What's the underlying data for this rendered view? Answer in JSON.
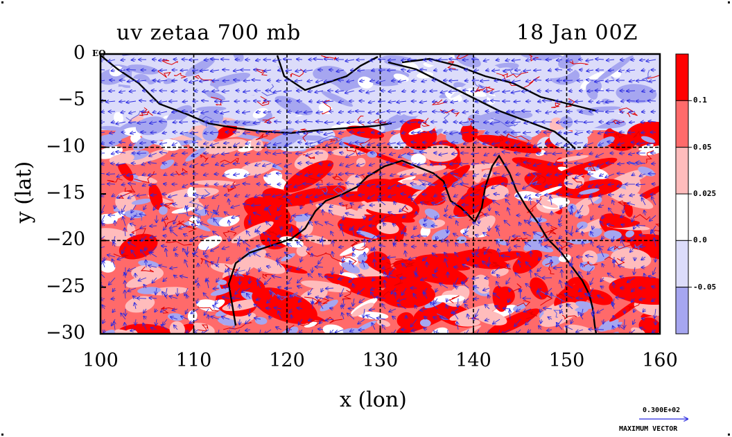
{
  "title_left": "uv zetaa 700 mb",
  "title_right": "18 Jan 00Z",
  "x_axis_label": "x (lon)",
  "y_axis_label": "y (lat)",
  "equator_label": "EQ",
  "x_ticks": [
    "100",
    "110",
    "120",
    "130",
    "140",
    "150",
    "160"
  ],
  "y_ticks": [
    "0",
    "−5",
    "−10",
    "−15",
    "−20",
    "−25",
    "−30"
  ],
  "colorbar": {
    "labels": [
      "0.1",
      "0.05",
      "0.025",
      "0.0",
      "-0.05"
    ],
    "colors": [
      "#ff0000",
      "#ff6a6a",
      "#ffbcbc",
      "#ffffff",
      "#dcdcfa",
      "#a6a6f0"
    ]
  },
  "vector_key": {
    "value": "0.300E+02",
    "caption": "MAXIMUM VECTOR"
  },
  "map": {
    "lon_range": [
      100,
      160
    ],
    "lat_range": [
      -30,
      0
    ],
    "grid": true,
    "coastline_color": "#000000",
    "vector_color": "#2a2ae0",
    "shading_colors": {
      "strong_positive": "#ff0000",
      "positive": "#ff6a6a",
      "weak_positive": "#ffbcbc",
      "near_zero": "#ffffff",
      "weak_negative": "#dcdcfa",
      "negative": "#a6a6f0"
    }
  }
}
